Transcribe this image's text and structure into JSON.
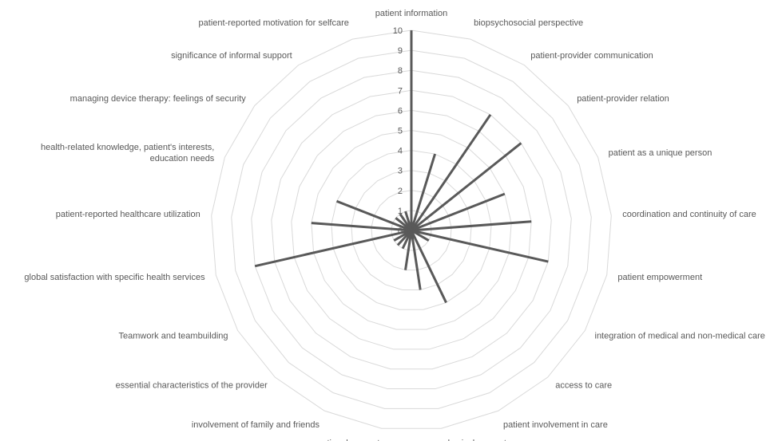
{
  "chart_data": {
    "type": "radar",
    "style": "spoke",
    "title": "",
    "rlim": [
      0,
      10
    ],
    "ticks": [
      0,
      1,
      2,
      3,
      4,
      5,
      6,
      7,
      8,
      9,
      10
    ],
    "grid": true,
    "categories": [
      [
        "patient information"
      ],
      [
        "biopsychosocial perspective"
      ],
      [
        "patient-provider communication"
      ],
      [
        "patient-provider relation"
      ],
      [
        "patient as a unique person"
      ],
      [
        "coordination and continuity of care"
      ],
      [
        "patient empowerment"
      ],
      [
        "integration of medical and non-medical care"
      ],
      [
        "access to care"
      ],
      [
        "patient involvement in care"
      ],
      [
        "physical support"
      ],
      [
        "emotional support"
      ],
      [
        "involvement of family and friends"
      ],
      [
        "essential characteristics of the provider"
      ],
      [
        "Teamwork and teambuilding"
      ],
      [
        "global satisfaction with specific health services"
      ],
      [
        "patient-reported healthcare utilization"
      ],
      [
        "health-related knowledge, patient's interests,",
        "education needs"
      ],
      [
        "managing device therapy: feelings of security"
      ],
      [
        "significance of informal support"
      ],
      [
        "patient-reported motivation for selfcare"
      ]
    ],
    "values": [
      10,
      4,
      7,
      7,
      5,
      6,
      7,
      1,
      0,
      4,
      3,
      2,
      1,
      1,
      1,
      8,
      5,
      4,
      1,
      1,
      1
    ],
    "colors": {
      "grid": "#d9d9d9",
      "series": "#595959",
      "text": "#595959"
    }
  }
}
